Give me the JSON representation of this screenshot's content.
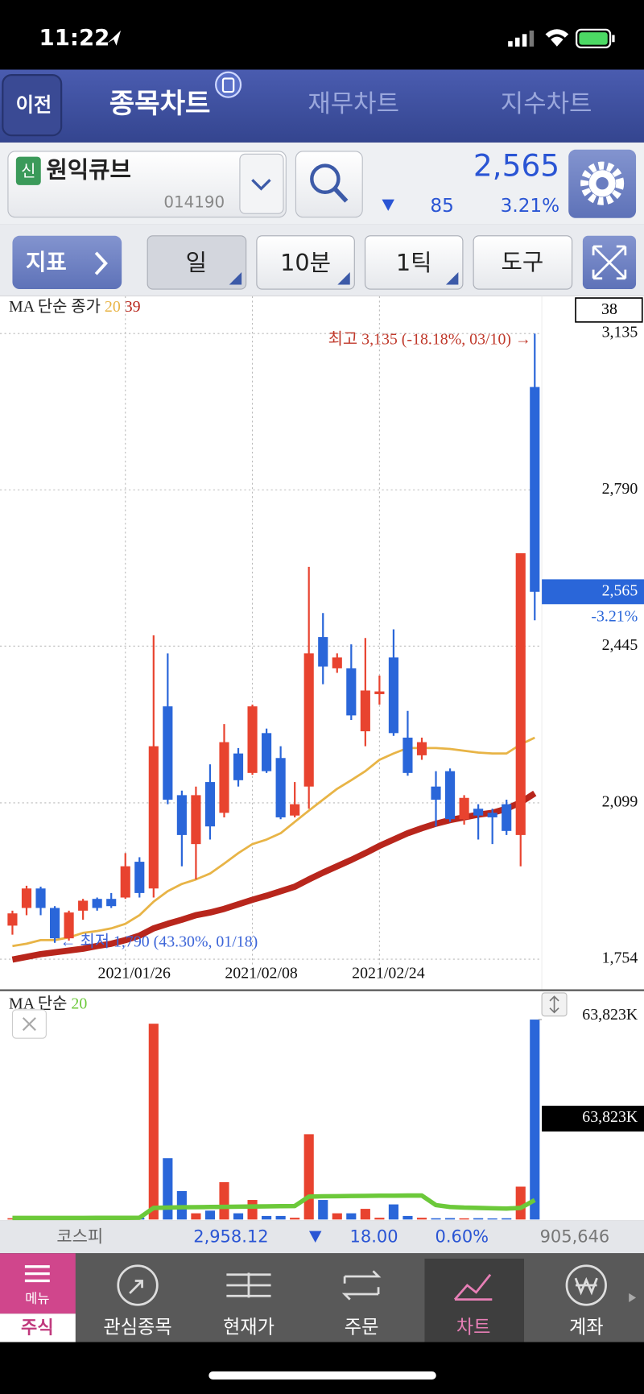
{
  "status_bar": {
    "time": "11:22"
  },
  "tabs": {
    "back": "이전",
    "items": [
      "종목차트",
      "재무차트",
      "지수차트"
    ]
  },
  "stock": {
    "badge": "신",
    "name": "원익큐브",
    "code": "014190",
    "price": "2,565",
    "change": "85",
    "percent": "3.21%"
  },
  "toolbar": {
    "indicator": "지표",
    "period": "일",
    "minute": "10분",
    "tick": "1틱",
    "tools": "도구"
  },
  "price_chart": {
    "type": "candlestick",
    "legend": "MA 단순 종가",
    "info_box": "38",
    "categories": [
      null,
      null,
      null,
      null,
      null,
      null,
      null,
      null,
      "2021/01/26",
      null,
      null,
      null,
      null,
      null,
      null,
      null,
      null,
      "2021/02/08",
      null,
      null,
      null,
      null,
      null,
      null,
      null,
      null,
      "2021/02/24",
      null,
      null,
      null,
      null,
      null,
      null,
      null,
      null,
      null,
      null,
      null
    ],
    "up_color": "#e8432f",
    "down_color": "#2a66d9",
    "open": [
      1828,
      1867,
      1910,
      1867,
      1800,
      1861,
      1887,
      1887,
      1890,
      1969,
      1910,
      2312,
      2116,
      2008,
      2145,
      2077,
      2208,
      2165,
      2253,
      2198,
      2071,
      2135,
      2465,
      2396,
      2396,
      2257,
      2339,
      2420,
      2243,
      2204,
      2135,
      2169,
      2063,
      2086,
      2077,
      2096,
      2028,
      3017
    ],
    "high": [
      1861,
      1916,
      1914,
      1871,
      1861,
      1887,
      1890,
      1900,
      1988,
      1979,
      2469,
      2429,
      2126,
      2135,
      2184,
      2273,
      2220,
      2316,
      2263,
      2224,
      2145,
      2620,
      2518,
      2429,
      2449,
      2463,
      2380,
      2482,
      2302,
      2243,
      2169,
      2175,
      2116,
      2096,
      2086,
      2106,
      2650,
      3135
    ],
    "low": [
      1808,
      1851,
      1851,
      1790,
      1795,
      1841,
      1861,
      1867,
      1887,
      1890,
      1890,
      2096,
      1959,
      1930,
      2018,
      2067,
      2135,
      2161,
      2165,
      2063,
      2067,
      2086,
      2361,
      2386,
      2282,
      2224,
      2316,
      2247,
      2159,
      2194,
      2047,
      2057,
      2051,
      2018,
      2008,
      2028,
      1959,
      2502
    ],
    "close": [
      1855,
      1910,
      1867,
      1800,
      1857,
      1883,
      1867,
      1871,
      1959,
      1900,
      2224,
      2106,
      2028,
      2116,
      2047,
      2233,
      2149,
      2312,
      2169,
      2067,
      2096,
      2429,
      2400,
      2420,
      2292,
      2347,
      2345,
      2253,
      2165,
      2233,
      2106,
      2063,
      2110,
      2071,
      2067,
      2037,
      2650,
      2565
    ],
    "series": [
      {
        "name": "20",
        "color": "#e8b446",
        "values": [
          1783,
          1788,
          1796,
          1796,
          1802,
          1812,
          1816,
          1822,
          1832,
          1851,
          1881,
          1904,
          1920,
          1930,
          1943,
          1965,
          1988,
          2008,
          2018,
          2032,
          2057,
          2082,
          2106,
          2130,
          2149,
          2169,
          2194,
          2208,
          2220,
          2220,
          2220,
          2218,
          2214,
          2210,
          2208,
          2208,
          2228,
          2243
        ]
      },
      {
        "name": "39",
        "color": "#b8261c",
        "values": [
          1753,
          1759,
          1765,
          1769,
          1773,
          1777,
          1783,
          1788,
          1796,
          1806,
          1822,
          1832,
          1841,
          1851,
          1857,
          1865,
          1875,
          1885,
          1894,
          1904,
          1914,
          1930,
          1945,
          1959,
          1973,
          1988,
          2004,
          2018,
          2032,
          2043,
          2053,
          2061,
          2067,
          2073,
          2077,
          2086,
          2100,
          2120
        ]
      }
    ],
    "ylim": [
      1754,
      3135
    ],
    "yticks": [
      {
        "value": 3135,
        "label": "3,135"
      },
      {
        "value": 2790,
        "label": "2,790"
      },
      {
        "value": 2445,
        "label": "2,445"
      },
      {
        "value": 2099,
        "label": "2,099"
      },
      {
        "value": 1754,
        "label": "1,754"
      }
    ],
    "grid": true,
    "last_price": {
      "value": 2565,
      "label": "2,565"
    },
    "last_change": "-3.21%",
    "high_note": "최고 3,135 (-18.18%, 03/10) →",
    "low_note": "← 최저 1,790 (43.30%, 01/18)"
  },
  "volume_chart": {
    "type": "bar",
    "legend": "MA 단순",
    "values": [
      420,
      610,
      380,
      900,
      700,
      450,
      300,
      350,
      800,
      600,
      62500,
      19572,
      9077,
      1986,
      2837,
      11914,
      1986,
      6241,
      1135,
      1135,
      567,
      27231,
      6241,
      1986,
      1986,
      3404,
      567,
      4822,
      1135,
      567,
      400,
      450,
      380,
      420,
      350,
      400,
      10495,
      63823
    ],
    "series": [
      {
        "name": "20",
        "color": "#6cc93a",
        "values": [
          500,
          500,
          500,
          500,
          500,
          500,
          520,
          530,
          540,
          560,
          3700,
          3800,
          3900,
          3950,
          4000,
          4050,
          4100,
          4150,
          4200,
          4250,
          4300,
          7300,
          7400,
          7450,
          7500,
          7550,
          7600,
          7600,
          7650,
          7650,
          4600,
          4000,
          3800,
          3700,
          3600,
          3500,
          3700,
          6200
        ]
      }
    ],
    "ylim": [
      0,
      63823
    ],
    "yticks": [
      {
        "value": 63823,
        "label": "63,823K"
      }
    ],
    "last_value": {
      "value": 63823,
      "label": "63,823K"
    }
  },
  "index_bar": {
    "name": "코스피",
    "value": "2,958.12",
    "change": "18.00",
    "percent": "0.60%",
    "volume": "905,646"
  },
  "nav": {
    "menu": "메뉴",
    "section": "주식",
    "items": [
      "관심종목",
      "현재가",
      "주문",
      "차트",
      "계좌"
    ]
  }
}
